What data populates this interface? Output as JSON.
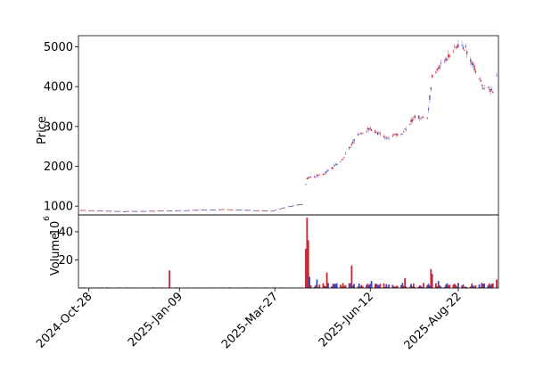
{
  "chart_data": [
    {
      "panel": "price",
      "type": "candlestick",
      "ylabel": "Price",
      "ylim": [
        780,
        5280
      ],
      "yticks": [
        1000,
        2000,
        3000,
        4000,
        5000
      ],
      "tick_labels": [
        "1000",
        "2000",
        "3000",
        "4000",
        "5000"
      ],
      "up_color": "#3a49c4",
      "down_color": "#c42a36",
      "grid": false,
      "key_points": [
        {
          "date": "2024-Oct-21",
          "price": 900
        },
        {
          "date": "2024-Nov-25",
          "price": 870
        },
        {
          "date": "2025-Jan-05",
          "price": 890
        },
        {
          "date": "2025-Feb-15",
          "price": 920
        },
        {
          "date": "2025-Mar-25",
          "price": 880
        },
        {
          "date": "2025-Apr-08",
          "price": 1000
        },
        {
          "date": "2025-Apr-18",
          "price": 1050
        },
        {
          "date": "2025-Apr-22",
          "price": 1700
        },
        {
          "date": "2025-May-05",
          "price": 1800
        },
        {
          "date": "2025-May-20",
          "price": 2150
        },
        {
          "date": "2025-Jun-02",
          "price": 2800
        },
        {
          "date": "2025-Jun-12",
          "price": 2950
        },
        {
          "date": "2025-Jun-25",
          "price": 2700
        },
        {
          "date": "2025-Jul-08",
          "price": 2850
        },
        {
          "date": "2025-Jul-18",
          "price": 3250
        },
        {
          "date": "2025-Jul-28",
          "price": 3200
        },
        {
          "date": "2025-Aug-01",
          "price": 4250
        },
        {
          "date": "2025-Aug-12",
          "price": 4700
        },
        {
          "date": "2025-Aug-22",
          "price": 5050
        },
        {
          "date": "2025-Aug-28",
          "price": 4950
        },
        {
          "date": "2025-Sep-05",
          "price": 4400
        },
        {
          "date": "2025-Sep-12",
          "price": 3950
        },
        {
          "date": "2025-Sep-19",
          "price": 3900
        },
        {
          "date": "2025-Sep-22",
          "price": 4250
        }
      ]
    },
    {
      "panel": "volume",
      "type": "bar",
      "ylabel": "Volume",
      "exponent_label": "10",
      "exponent_power": "6",
      "ylim": [
        0,
        52
      ],
      "yticks": [
        20,
        40
      ],
      "tick_labels": [
        "20",
        "40"
      ],
      "spikes": [
        {
          "date": "2025-Jan-01",
          "value": 12.5,
          "dir": "down"
        },
        {
          "date": "2025-Apr-21",
          "value": 28,
          "dir": "down"
        },
        {
          "date": "2025-Apr-22",
          "value": 50,
          "dir": "down"
        },
        {
          "date": "2025-Apr-23",
          "value": 34,
          "dir": "down"
        },
        {
          "date": "2025-Apr-24",
          "value": 8,
          "dir": "up"
        },
        {
          "date": "2025-Apr-30",
          "value": 6,
          "dir": "up"
        },
        {
          "date": "2025-May-08",
          "value": 11,
          "dir": "down"
        },
        {
          "date": "2025-May-28",
          "value": 16,
          "dir": "down"
        },
        {
          "date": "2025-Jun-13",
          "value": 5,
          "dir": "up"
        },
        {
          "date": "2025-Jul-10",
          "value": 7,
          "dir": "down"
        },
        {
          "date": "2025-Jul-31",
          "value": 13.5,
          "dir": "down"
        },
        {
          "date": "2025-Aug-01",
          "value": 10,
          "dir": "down"
        },
        {
          "date": "2025-Aug-06",
          "value": 5,
          "dir": "up"
        },
        {
          "date": "2025-Sep-21",
          "value": 3,
          "dir": "up"
        },
        {
          "date": "2025-Sep-22",
          "value": 6,
          "dir": "down"
        }
      ]
    }
  ],
  "x_axis": {
    "range": [
      "2024-Oct-21",
      "2025-Sep-22"
    ],
    "ticks": [
      {
        "date": "2024-Oct-28",
        "label": "2024-Oct-28"
      },
      {
        "date": "2025-Jan-09",
        "label": "2025-Jan-09"
      },
      {
        "date": "2025-Mar-27",
        "label": "2025-Mar-27"
      },
      {
        "date": "2025-Jun-12",
        "label": "2025-Jun-12"
      },
      {
        "date": "2025-Aug-22",
        "label": "2025-Aug-22"
      }
    ]
  }
}
